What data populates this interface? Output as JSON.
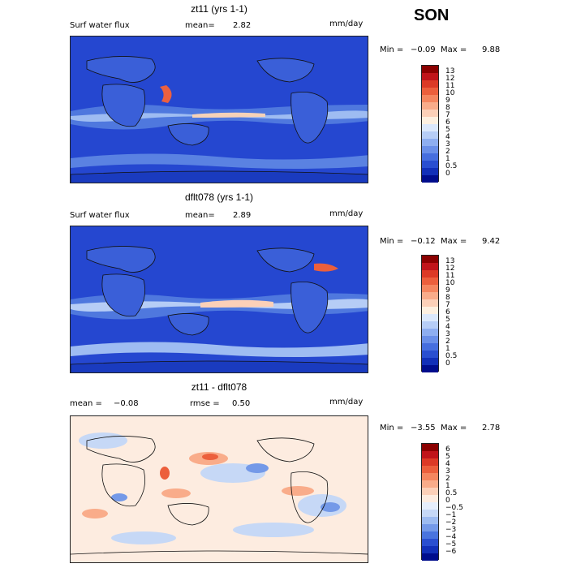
{
  "season": "SON",
  "panels": [
    {
      "title": "zt11 (yrs 1-1)",
      "variable": "Surf water flux",
      "mean_label": "mean=",
      "mean_value": "2.82",
      "units": "mm/day",
      "min_label": "Min =",
      "min_value": "−0.09",
      "max_label": "Max =",
      "max_value": "9.88",
      "colorbar": {
        "ticks": [
          "13",
          "12",
          "11",
          "10",
          "9",
          "8",
          "7",
          "6",
          "5",
          "4",
          "3",
          "2",
          "1",
          "0.5",
          "0"
        ],
        "colors": [
          "#8b0000",
          "#c0141a",
          "#dc3a26",
          "#ec5f3c",
          "#f5865f",
          "#f9ac8a",
          "#fcd0b8",
          "#fdf0e0",
          "#dbe8fb",
          "#b6cdf6",
          "#8eaef0",
          "#6a8fe8",
          "#466ede",
          "#2a4fd0",
          "#1230b8",
          "#000d8c"
        ]
      }
    },
    {
      "title": "dflt078 (yrs 1-1)",
      "variable": "Surf water flux",
      "mean_label": "mean=",
      "mean_value": "2.89",
      "units": "mm/day",
      "min_label": "Min =",
      "min_value": "−0.12",
      "max_label": "Max =",
      "max_value": "9.42",
      "colorbar": {
        "ticks": [
          "13",
          "12",
          "11",
          "10",
          "9",
          "8",
          "7",
          "6",
          "5",
          "4",
          "3",
          "2",
          "1",
          "0.5",
          "0"
        ],
        "colors": [
          "#8b0000",
          "#c0141a",
          "#dc3a26",
          "#ec5f3c",
          "#f5865f",
          "#f9ac8a",
          "#fcd0b8",
          "#fdf0e0",
          "#dbe8fb",
          "#b6cdf6",
          "#8eaef0",
          "#6a8fe8",
          "#466ede",
          "#2a4fd0",
          "#1230b8",
          "#000d8c"
        ]
      }
    },
    {
      "title": "zt11 - dflt078",
      "mean_label": "mean =",
      "mean_value": "−0.08",
      "rmse_label": "rmse =",
      "rmse_value": "0.50",
      "units": "mm/day",
      "min_label": "Min =",
      "min_value": "−3.55",
      "max_label": "Max =",
      "max_value": "2.78",
      "colorbar": {
        "ticks": [
          "6",
          "5",
          "4",
          "3",
          "2",
          "1",
          "0.5",
          "0",
          "−0.5",
          "−1",
          "−2",
          "−3",
          "−4",
          "−5",
          "−6"
        ],
        "colors": [
          "#8b0000",
          "#c0141a",
          "#dc3a26",
          "#ec5f3c",
          "#f5865f",
          "#f9ac8a",
          "#fcd0b8",
          "#fdece0",
          "#e6eefb",
          "#c6d8f6",
          "#9dbbf0",
          "#7499e8",
          "#4a74de",
          "#2a4fd0",
          "#1230b8",
          "#000d8c"
        ]
      }
    }
  ]
}
